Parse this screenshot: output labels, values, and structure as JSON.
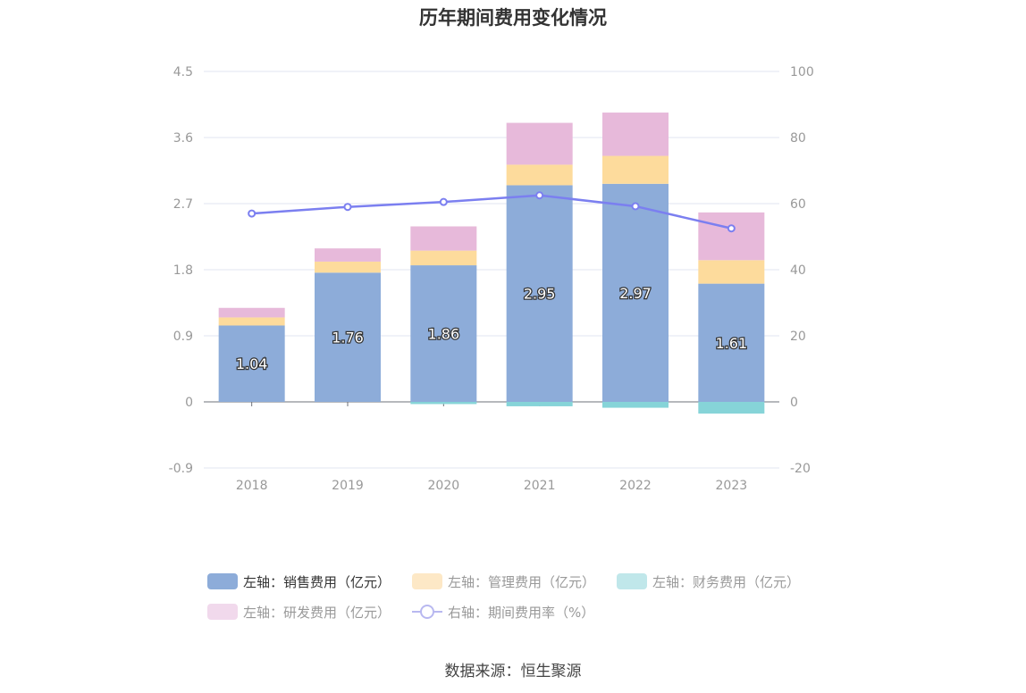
{
  "chart_data": {
    "type": "bar",
    "title": "历年期间费用变化情况",
    "categories": [
      "2018",
      "2019",
      "2020",
      "2021",
      "2022",
      "2023"
    ],
    "series": [
      {
        "name": "左轴：销售费用（亿元）",
        "axis": "left",
        "color": "#8dacd9",
        "values": [
          1.04,
          1.76,
          1.86,
          2.95,
          2.97,
          1.61
        ]
      },
      {
        "name": "左轴：管理费用（亿元）",
        "axis": "left",
        "color": "#fddb9c",
        "values": [
          0.11,
          0.15,
          0.2,
          0.28,
          0.38,
          0.32
        ]
      },
      {
        "name": "左轴：财务费用（亿元）",
        "axis": "left",
        "color": "#86d4d8",
        "values": [
          0.0,
          0.0,
          -0.03,
          -0.06,
          -0.08,
          -0.16
        ]
      },
      {
        "name": "左轴：研发费用（亿元）",
        "axis": "left",
        "color": "#e7b9da",
        "values": [
          0.13,
          0.18,
          0.33,
          0.57,
          0.59,
          0.65
        ]
      },
      {
        "name": "右轴：期间费用率（%）",
        "axis": "right",
        "type": "line",
        "color": "#7b7ff0",
        "values": [
          57.0,
          59.0,
          60.5,
          62.5,
          59.2,
          52.5
        ]
      }
    ],
    "data_labels": [
      "1.04",
      "1.76",
      "1.86",
      "2.95",
      "2.97",
      "1.61"
    ],
    "y_left": {
      "min": -0.9,
      "max": 4.5,
      "ticks": [
        "-0.9",
        "0",
        "0.9",
        "1.8",
        "2.7",
        "3.6",
        "4.5"
      ]
    },
    "y_right": {
      "min": -20,
      "max": 100,
      "ticks": [
        "-20",
        "0",
        "20",
        "40",
        "60",
        "80",
        "100"
      ]
    },
    "grid": true,
    "legend_position": "bottom"
  },
  "legend": {
    "items": [
      {
        "label": "左轴：销售费用（亿元）",
        "color": "#8dacd9",
        "active": true
      },
      {
        "label": "左轴：管理费用（亿元）",
        "color": "#fde8c6",
        "active": false
      },
      {
        "label": "左轴：财务费用（亿元）",
        "color": "#c0e7ea",
        "active": false
      },
      {
        "label": "左轴：研发费用（亿元）",
        "color": "#f1d9ec",
        "active": false
      },
      {
        "label": "右轴：期间费用率（%）",
        "color": "#b8b8f0",
        "active": false,
        "type": "line"
      }
    ]
  },
  "source": "数据来源：恒生聚源"
}
